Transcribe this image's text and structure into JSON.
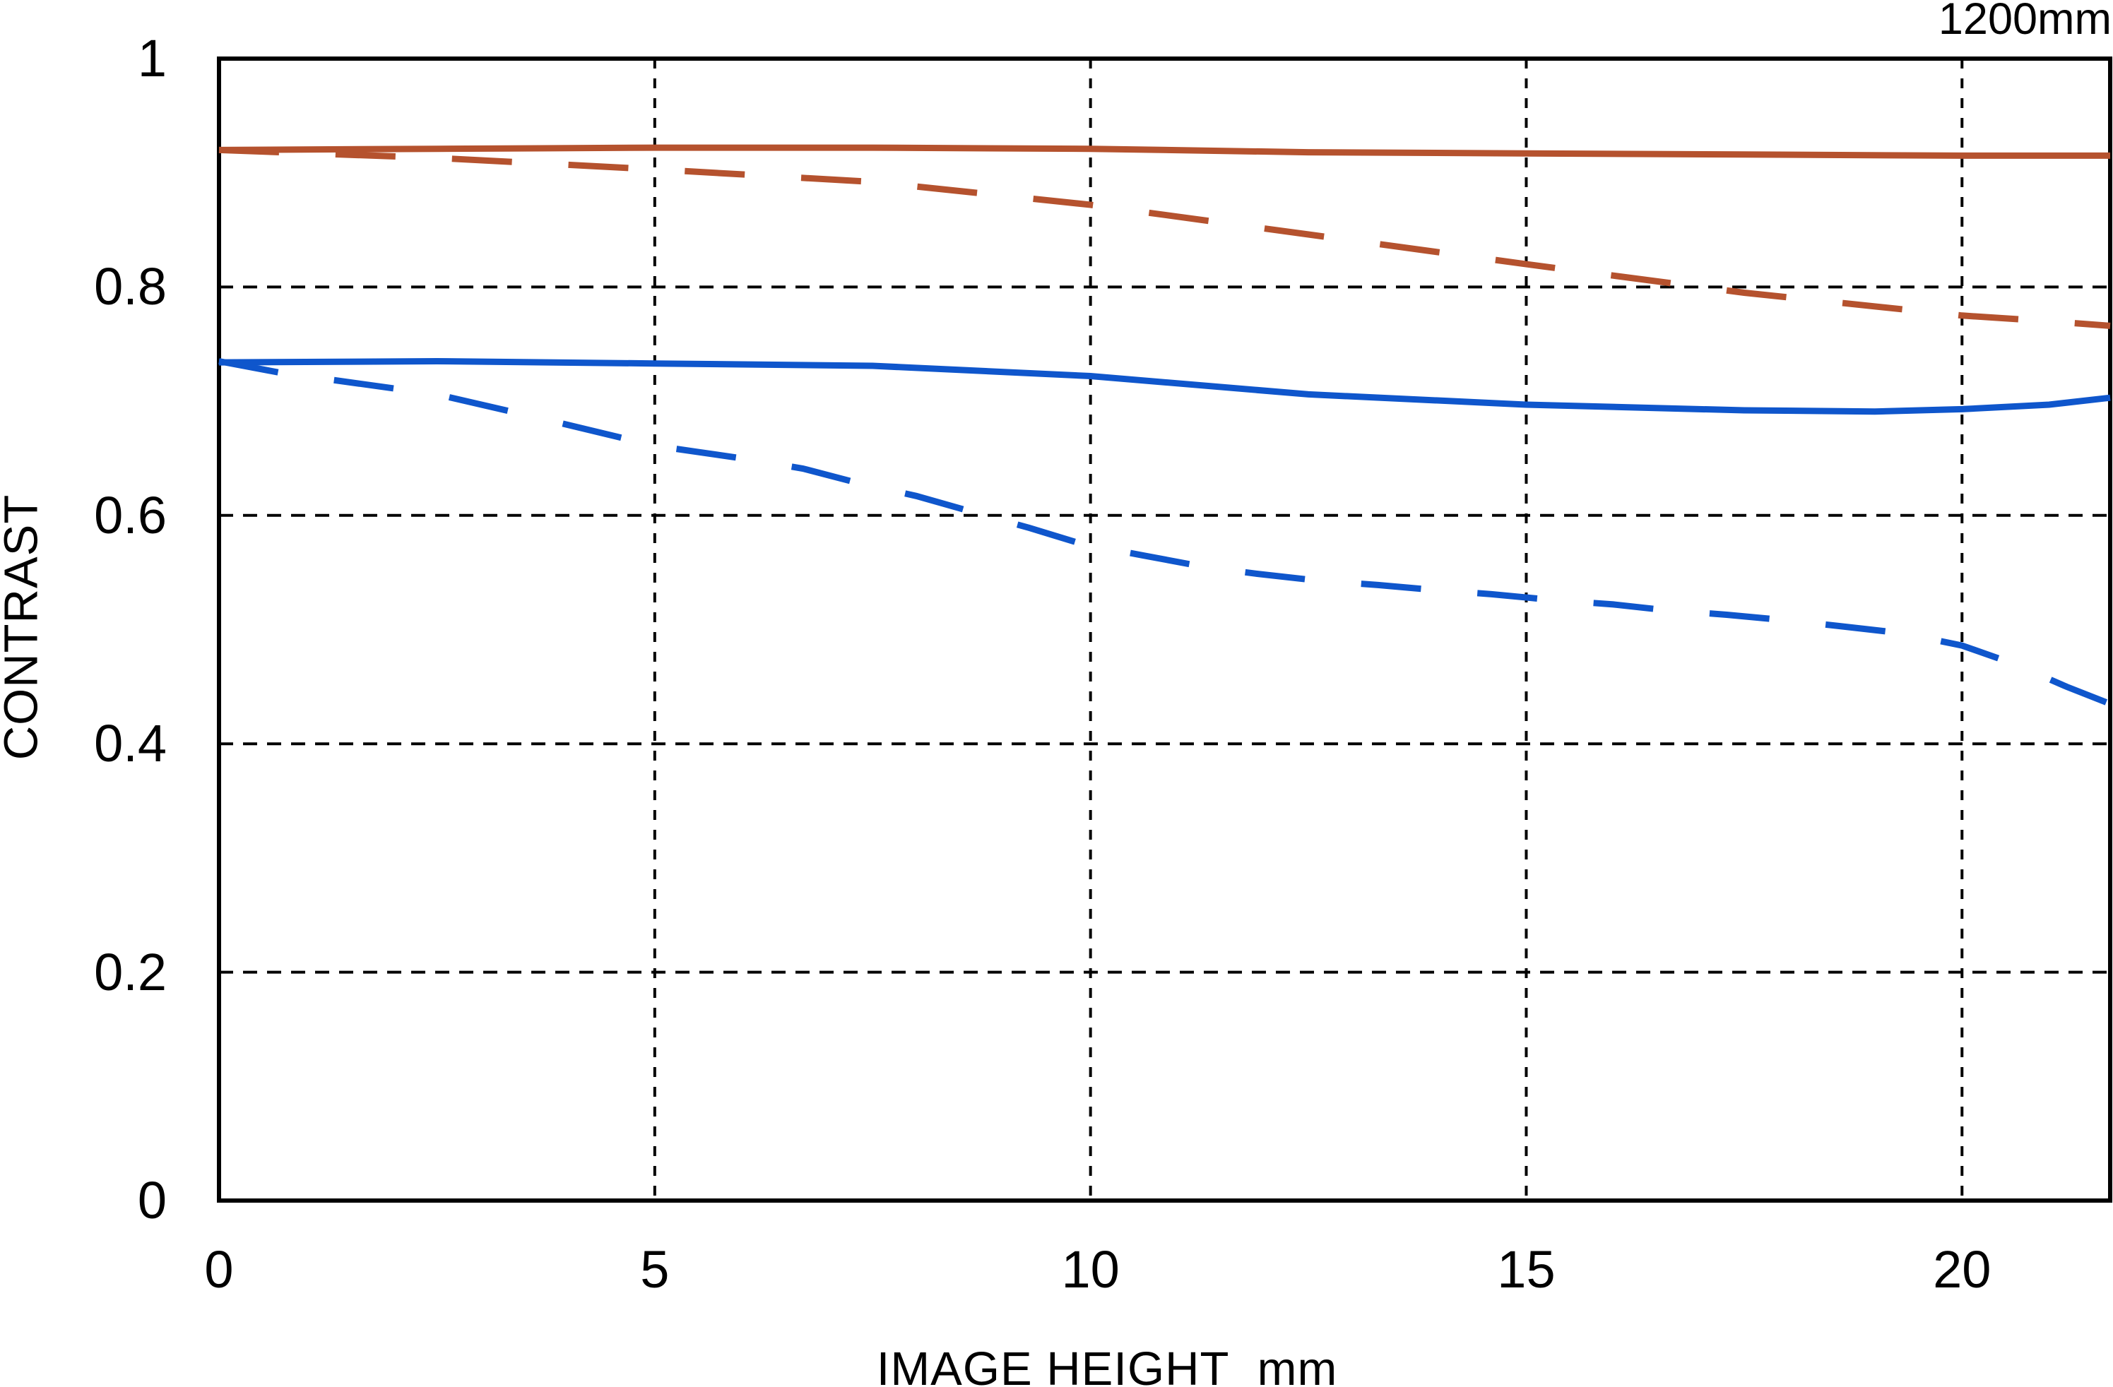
{
  "title": "1200mm",
  "axes": {
    "y_label": "CONTRAST",
    "x_label": "IMAGE HEIGHT  mm"
  },
  "colors": {
    "red": "#b5522e",
    "blue": "#0f56cc",
    "grid": "#000000",
    "border": "#000000",
    "background": "#ffffff"
  },
  "chart_data": {
    "type": "line",
    "title": "1200mm",
    "xlabel": "IMAGE HEIGHT mm",
    "ylabel": "CONTRAST",
    "xlim": [
      0,
      21.7
    ],
    "ylim": [
      0,
      1
    ],
    "grid": true,
    "legend": "none",
    "x_gridlines": [
      5,
      10,
      15,
      20
    ],
    "y_gridlines": [
      0.2,
      0.4,
      0.6,
      0.8
    ],
    "x_ticks": [
      {
        "value": 0,
        "label": "0"
      },
      {
        "value": 5,
        "label": "5"
      },
      {
        "value": 10,
        "label": "10"
      },
      {
        "value": 15,
        "label": "15"
      },
      {
        "value": 20,
        "label": "20"
      }
    ],
    "y_ticks": [
      {
        "value": 1,
        "label": "1"
      },
      {
        "value": 0.8,
        "label": "0.8"
      },
      {
        "value": 0.6,
        "label": "0.6"
      },
      {
        "value": 0.4,
        "label": "0.4"
      },
      {
        "value": 0.2,
        "label": "0.2"
      },
      {
        "value": 0,
        "label": "0"
      }
    ],
    "series": [
      {
        "id": "red-solid",
        "color": "#b5522e",
        "dashed": false,
        "points": [
          [
            0,
            0.92
          ],
          [
            2.5,
            0.921
          ],
          [
            5,
            0.922
          ],
          [
            7.5,
            0.922
          ],
          [
            10,
            0.921
          ],
          [
            12.5,
            0.918
          ],
          [
            15,
            0.917
          ],
          [
            17.5,
            0.916
          ],
          [
            20,
            0.915
          ],
          [
            21.7,
            0.915
          ]
        ]
      },
      {
        "id": "red-dashed",
        "color": "#b5522e",
        "dashed": true,
        "points": [
          [
            0,
            0.92
          ],
          [
            2.5,
            0.913
          ],
          [
            5,
            0.903
          ],
          [
            7.5,
            0.892
          ],
          [
            10,
            0.872
          ],
          [
            12.5,
            0.846
          ],
          [
            15,
            0.82
          ],
          [
            17.5,
            0.795
          ],
          [
            20,
            0.775
          ],
          [
            21,
            0.77
          ],
          [
            21.7,
            0.766
          ]
        ]
      },
      {
        "id": "blue-solid",
        "color": "#0f56cc",
        "dashed": false,
        "points": [
          [
            0,
            0.734
          ],
          [
            2.5,
            0.735
          ],
          [
            5,
            0.733
          ],
          [
            7.5,
            0.731
          ],
          [
            10,
            0.722
          ],
          [
            12.5,
            0.706
          ],
          [
            15,
            0.697
          ],
          [
            17.5,
            0.692
          ],
          [
            19,
            0.691
          ],
          [
            20,
            0.693
          ],
          [
            21,
            0.697
          ],
          [
            21.7,
            0.703
          ]
        ]
      },
      {
        "id": "blue-dashed",
        "color": "#0f56cc",
        "dashed": true,
        "points": [
          [
            0,
            0.735
          ],
          [
            0.7,
            0.725
          ],
          [
            2.5,
            0.706
          ],
          [
            3.8,
            0.683
          ],
          [
            5,
            0.661
          ],
          [
            6,
            0.65
          ],
          [
            6.7,
            0.641
          ],
          [
            7.3,
            0.629
          ],
          [
            8,
            0.617
          ],
          [
            8.6,
            0.604
          ],
          [
            9.3,
            0.589
          ],
          [
            9.9,
            0.575
          ],
          [
            10.6,
            0.565
          ],
          [
            11.3,
            0.555
          ],
          [
            11.9,
            0.549
          ],
          [
            12.6,
            0.543
          ],
          [
            13.3,
            0.539
          ],
          [
            13.9,
            0.535
          ],
          [
            14.6,
            0.531
          ],
          [
            15.3,
            0.526
          ],
          [
            16,
            0.522
          ],
          [
            16.6,
            0.517
          ],
          [
            17.3,
            0.513
          ],
          [
            18,
            0.508
          ],
          [
            18.6,
            0.503
          ],
          [
            19.3,
            0.497
          ],
          [
            20,
            0.486
          ],
          [
            20.6,
            0.47
          ],
          [
            21.2,
            0.45
          ],
          [
            21.7,
            0.435
          ]
        ]
      }
    ]
  }
}
